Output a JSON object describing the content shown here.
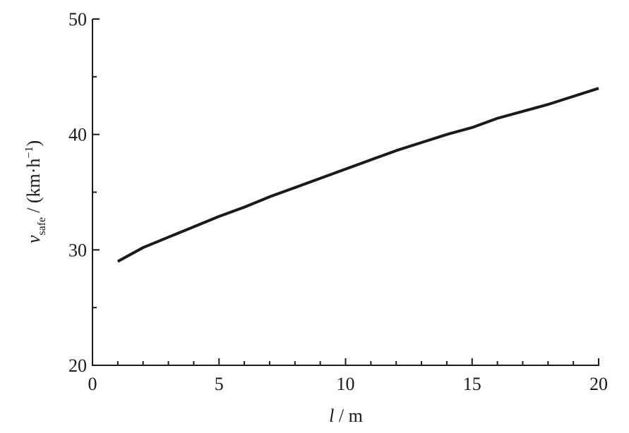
{
  "chart_data": {
    "type": "line",
    "xlabel_parts": [
      "l",
      "/ m"
    ],
    "ylabel_parts": [
      "v",
      "safe",
      "/ (km·h",
      "−1",
      ")"
    ],
    "x": [
      1,
      2,
      3,
      4,
      5,
      6,
      7,
      8,
      9,
      10,
      11,
      12,
      13,
      14,
      15,
      16,
      17,
      18,
      19,
      20
    ],
    "series": [
      {
        "color": "#1a1a1a",
        "values": [
          29.0,
          30.2,
          31.1,
          32.0,
          32.9,
          33.7,
          34.6,
          35.4,
          36.2,
          37.0,
          37.8,
          38.6,
          39.3,
          40.0,
          40.6,
          41.4,
          42.0,
          42.6,
          43.3,
          44.0
        ]
      }
    ],
    "xlim": [
      0,
      20
    ],
    "xticks": [
      0,
      5,
      10,
      15,
      20
    ],
    "xticks_minor": [
      1,
      2,
      3,
      4,
      6,
      7,
      8,
      9,
      11,
      12,
      13,
      14,
      16,
      17,
      18,
      19
    ],
    "ylim": [
      20,
      50
    ],
    "yticks": [
      20,
      30,
      40,
      50
    ],
    "yticks_minor": [
      25,
      35,
      45
    ],
    "grid": false
  }
}
